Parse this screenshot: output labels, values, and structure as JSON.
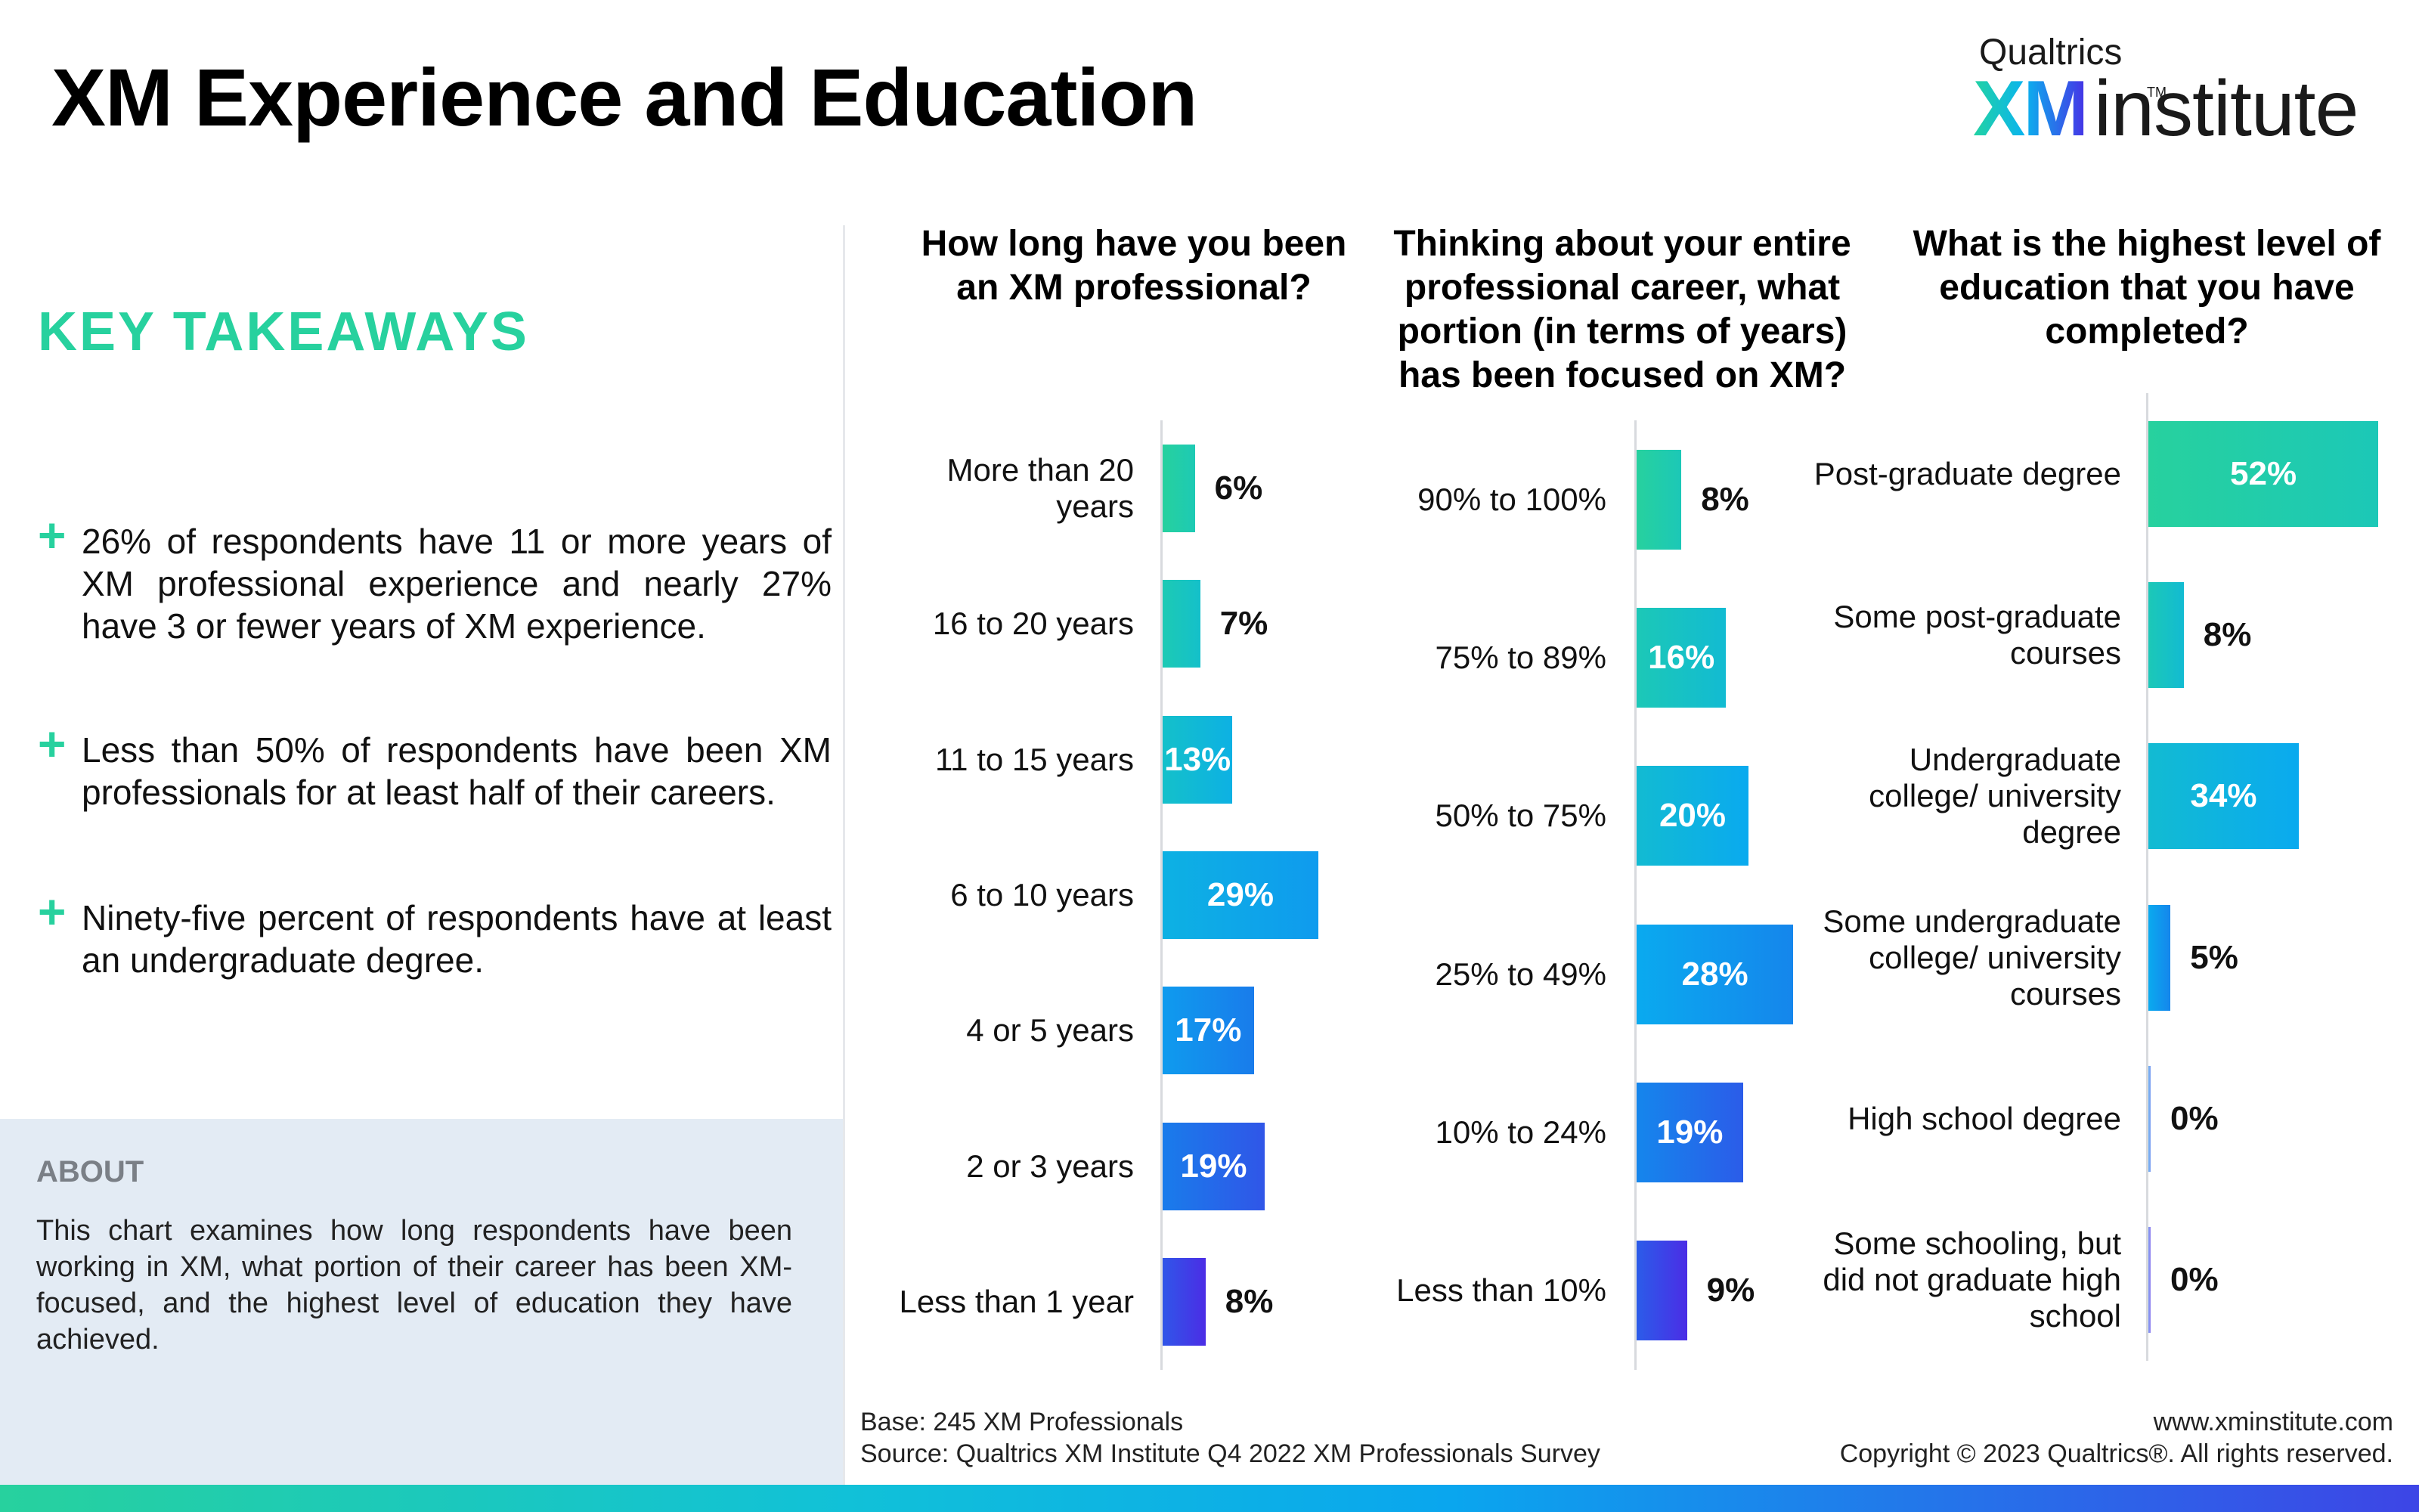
{
  "header": {
    "title": "XM Experience and Education",
    "logo": {
      "top": "Qualtrics",
      "xm": "XM",
      "rest": "institute",
      "tm": "TM"
    }
  },
  "takeaways": {
    "heading": "KEY TAKEAWAYS",
    "items": [
      "26% of respondents have 11 or more years of XM professional experience and nearly 27% have 3 or fewer years of XM experience.",
      "Less than 50% of respondents have been XM professionals for at least half of their careers.",
      "Ninety-five percent of respondents have at least an undergraduate degree."
    ]
  },
  "about": {
    "heading": "ABOUT",
    "text": "This chart examines how long respondents have been working in XM, what portion of their career has been XM-focused, and the highest level of education they have achieved."
  },
  "footer": {
    "base": "Base: 245 XM Professionals",
    "source": "Source: Qualtrics XM Institute Q4 2022 XM Professionals Survey",
    "website": "www.xminstitute.com",
    "copyright": "Copyright © 2023 Qualtrics®. All rights reserved."
  },
  "colors": {
    "accent_green": "#27d19e",
    "bar_gradient": [
      "#27d19e",
      "#16c4c4",
      "#0aaaef",
      "#1b74ea",
      "#4b2de6"
    ]
  },
  "chart_data": [
    {
      "type": "bar",
      "orientation": "horizontal",
      "title": "How long have you been an XM professional?",
      "categories": [
        "More than 20 years",
        "16 to 20 years",
        "11 to 15 years",
        "6 to 10 years",
        "4 or 5 years",
        "2 or 3 years",
        "Less than 1 year"
      ],
      "values": [
        6,
        7,
        13,
        29,
        17,
        19,
        8
      ],
      "labels": [
        "6%",
        "7%",
        "13%",
        "29%",
        "17%",
        "19%",
        "8%"
      ],
      "unit": "%"
    },
    {
      "type": "bar",
      "orientation": "horizontal",
      "title": "Thinking about your entire professional career, what portion (in terms of years) has been focused on XM?",
      "categories": [
        "90% to 100%",
        "75% to 89%",
        "50% to 75%",
        "25% to 49%",
        "10% to 24%",
        "Less than 10%"
      ],
      "values": [
        8,
        16,
        20,
        28,
        19,
        9
      ],
      "labels": [
        "8%",
        "16%",
        "20%",
        "28%",
        "19%",
        "9%"
      ],
      "unit": "%"
    },
    {
      "type": "bar",
      "orientation": "horizontal",
      "title": "What is the highest level of education that you have completed?",
      "categories": [
        "Post-graduate degree",
        "Some post-graduate courses",
        "Undergraduate college/ university degree",
        "Some undergraduate college/ university courses",
        "High school degree",
        "Some schooling, but did not graduate high school"
      ],
      "values": [
        52,
        8,
        34,
        5,
        0,
        0
      ],
      "labels": [
        "52%",
        "8%",
        "34%",
        "5%",
        "0%",
        "0%"
      ],
      "unit": "%"
    }
  ]
}
